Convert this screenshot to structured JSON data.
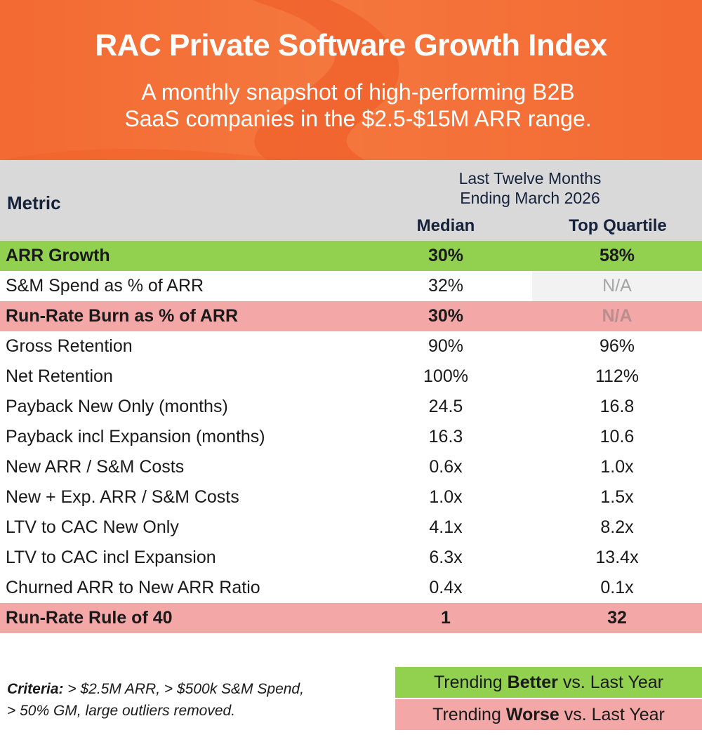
{
  "banner": {
    "title": "RAC Private Software Growth Index",
    "subtitle_line1": "A monthly snapshot of high-performing B2B",
    "subtitle_line2": "SaaS companies in the $2.5-$15M ARR range.",
    "color": "#f36a32"
  },
  "header": {
    "metric_label": "Metric",
    "period_line1": "Last Twelve Months",
    "period_line2": "Ending March 2026",
    "median_label": "Median",
    "top_quartile_label": "Top Quartile"
  },
  "rows": [
    {
      "metric": "ARR Growth",
      "median": "30%",
      "top_quartile": "58%",
      "trend": "better"
    },
    {
      "metric": "S&M Spend as % of ARR",
      "median": "32%",
      "top_quartile": "N/A",
      "trend": "none"
    },
    {
      "metric": "Run-Rate Burn as % of ARR",
      "median": "30%",
      "top_quartile": "N/A",
      "trend": "worse"
    },
    {
      "metric": "Gross Retention",
      "median": "90%",
      "top_quartile": "96%",
      "trend": "none"
    },
    {
      "metric": "Net Retention",
      "median": "100%",
      "top_quartile": "112%",
      "trend": "none"
    },
    {
      "metric": "Payback New Only (months)",
      "median": "24.5",
      "top_quartile": "16.8",
      "trend": "none"
    },
    {
      "metric": "Payback incl Expansion (months)",
      "median": "16.3",
      "top_quartile": "10.6",
      "trend": "none"
    },
    {
      "metric": "New ARR / S&M Costs",
      "median": "0.6x",
      "top_quartile": "1.0x",
      "trend": "none"
    },
    {
      "metric": "New + Exp. ARR / S&M Costs",
      "median": "1.0x",
      "top_quartile": "1.5x",
      "trend": "none"
    },
    {
      "metric": "LTV to CAC New Only",
      "median": "4.1x",
      "top_quartile": "8.2x",
      "trend": "none"
    },
    {
      "metric": "LTV to CAC incl Expansion",
      "median": "6.3x",
      "top_quartile": "13.4x",
      "trend": "none"
    },
    {
      "metric": "Churned ARR to New ARR Ratio",
      "median": "0.4x",
      "top_quartile": "0.1x",
      "trend": "none"
    },
    {
      "metric": "Run-Rate Rule of 40",
      "median": "1",
      "top_quartile": "32",
      "trend": "worse"
    }
  ],
  "criteria": {
    "label": "Criteria:",
    "text_line1": " > $2.5M ARR, > $500k S&M Spend,",
    "text_line2": "> 50% GM, large outliers removed."
  },
  "legend": {
    "better_prefix": "Trending ",
    "better_bold": "Better",
    "better_suffix": " vs. Last Year",
    "better_color": "#92d050",
    "worse_prefix": "Trending ",
    "worse_bold": "Worse",
    "worse_suffix": " vs. Last Year",
    "worse_color": "#f4a7a7"
  }
}
